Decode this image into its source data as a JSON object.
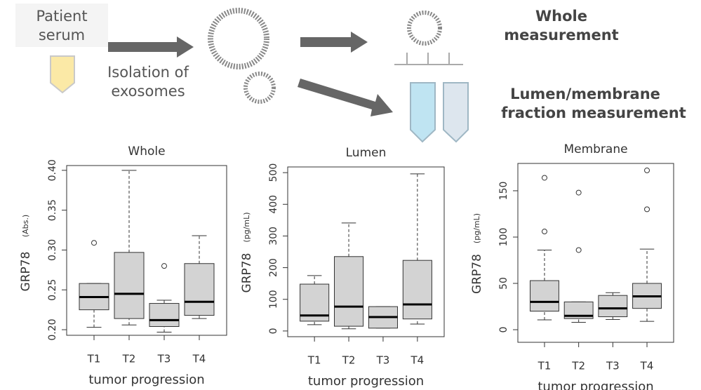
{
  "diagram": {
    "serum": [
      "Patient",
      "serum"
    ],
    "isolation": [
      "Isolation of",
      "exosomes"
    ],
    "whole": [
      "Whole",
      "measurement"
    ],
    "fraction": [
      "Lumen/membrane",
      "fraction measurement"
    ]
  },
  "chart_data": [
    {
      "type": "box",
      "title": "Whole",
      "y_label": "GRP78",
      "y_unit": "(Abs.)",
      "x_label": "tumor progression",
      "categories": [
        "T1",
        "T2",
        "T3",
        "T4"
      ],
      "boxes": [
        {
          "low": 0.203,
          "q1": 0.225,
          "median": 0.241,
          "q3": 0.258,
          "high": 0.258,
          "outliers": [
            0.309
          ]
        },
        {
          "low": 0.206,
          "q1": 0.214,
          "median": 0.245,
          "q3": 0.297,
          "high": 0.4,
          "outliers": []
        },
        {
          "low": 0.197,
          "q1": 0.204,
          "median": 0.212,
          "q3": 0.233,
          "high": 0.237,
          "outliers": [
            0.28
          ]
        },
        {
          "low": 0.214,
          "q1": 0.218,
          "median": 0.235,
          "q3": 0.283,
          "high": 0.318,
          "outliers": []
        }
      ],
      "ylim": [
        0.193,
        0.406
      ],
      "yticks": [
        {
          "value": 0.2,
          "label": "0.20"
        },
        0.25,
        {
          "value": 0.3,
          "label": "0.30"
        },
        0.35,
        {
          "value": 0.4,
          "label": "0.40"
        }
      ],
      "color": "#d3d3d3"
    },
    {
      "type": "box",
      "title": "Lumen",
      "y_label": "GRP78",
      "y_unit": "(pg/mL)",
      "x_label": "tumor progression",
      "categories": [
        "T1",
        "T2",
        "T3",
        "T4"
      ],
      "boxes": [
        {
          "low": 20,
          "q1": 31,
          "median": 49,
          "q3": 148,
          "high": 175,
          "outliers": []
        },
        {
          "low": 7,
          "q1": 15,
          "median": 77,
          "q3": 235,
          "high": 341,
          "outliers": []
        },
        {
          "low": 9,
          "q1": 9,
          "median": 44,
          "q3": 77,
          "high": 77,
          "outliers": []
        },
        {
          "low": 22,
          "q1": 38,
          "median": 84,
          "q3": 223,
          "high": 496,
          "outliers": []
        }
      ],
      "ylim": [
        -18,
        518
      ],
      "yticks": [
        0,
        100,
        200,
        300,
        400,
        500
      ],
      "color": "#d3d3d3"
    },
    {
      "type": "box",
      "title": "Membrane",
      "y_label": "GRP78",
      "y_unit": "(pg/mL)",
      "x_label": "tumor progression",
      "categories": [
        "T1",
        "T2",
        "T3",
        "T4"
      ],
      "boxes": [
        {
          "low": 10.6,
          "q1": 20,
          "median": 30,
          "q3": 53,
          "high": 86,
          "outliers": [
            106,
            164
          ]
        },
        {
          "low": 8,
          "q1": 12,
          "median": 15,
          "q3": 30,
          "high": 30,
          "outliers": [
            86,
            148
          ]
        },
        {
          "low": 11,
          "q1": 14,
          "median": 23,
          "q3": 37,
          "high": 40,
          "outliers": []
        },
        {
          "low": 9,
          "q1": 23,
          "median": 36,
          "q3": 50,
          "high": 87,
          "outliers": [
            130,
            172
          ]
        }
      ],
      "ylim": [
        -13.6,
        179.5
      ],
      "yticks": [
        0,
        50,
        100,
        150
      ],
      "color": "#d3d3d3"
    }
  ]
}
